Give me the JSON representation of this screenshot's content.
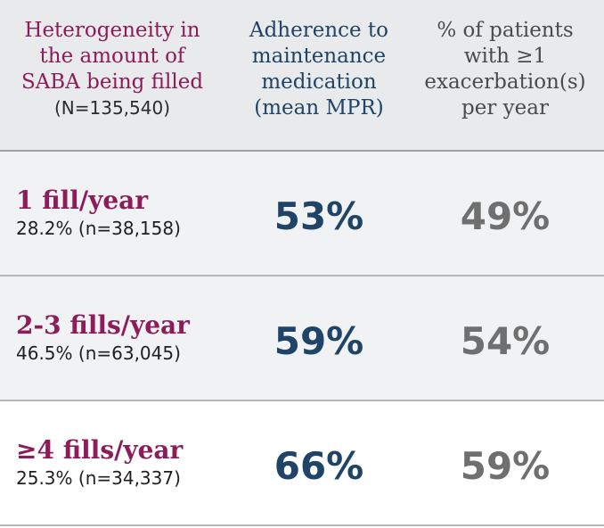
{
  "header": {
    "col1": {
      "lines": [
        "Heterogeneity in",
        "the amount of",
        "SABA being filled"
      ],
      "sub": "(N=135,540)"
    },
    "col2": {
      "lines": [
        "Adherence to",
        "maintenance",
        "medication",
        "(mean MPR)"
      ]
    },
    "col3": {
      "lines": [
        "% of patients",
        "with ≥1",
        "exacerbation(s)",
        "per year"
      ]
    }
  },
  "rows": [
    {
      "label": "1 fill/year",
      "count": "28.2% (n=38,158)",
      "adherence": "53%",
      "exacerbation": "49%"
    },
    {
      "label": "2-3 fills/year",
      "count": "46.5% (n=63,045)",
      "adherence": "59%",
      "exacerbation": "54%"
    },
    {
      "label": "≥4 fills/year",
      "count": "25.3% (n=34,337)",
      "adherence": "66%",
      "exacerbation": "59%"
    }
  ],
  "colors": {
    "label_accent": "#8c1d5a",
    "adherence_value": "#1f4468",
    "exacerbation_value": "#6f6f6f",
    "header_bg": "#e8eaeb",
    "row_shaded_bg": "#f1f2f3"
  }
}
